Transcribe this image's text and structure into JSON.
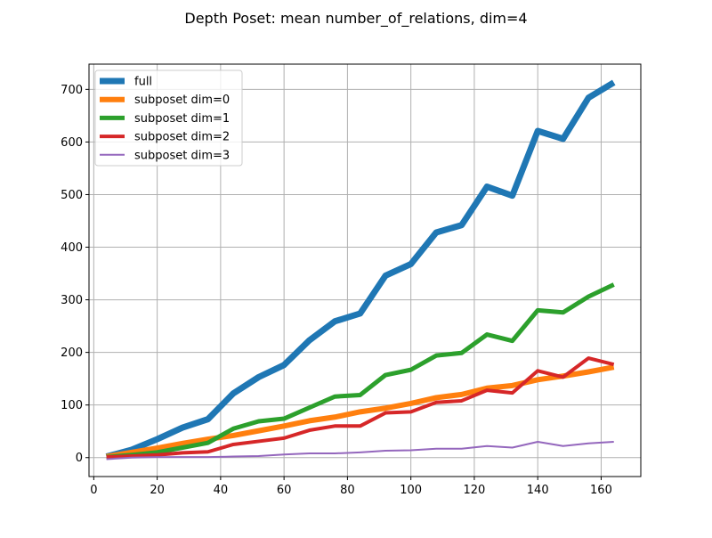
{
  "chart_data": {
    "type": "line",
    "title": "Depth Poset: mean number_of_relations, dim=4",
    "xlabel": "",
    "ylabel": "",
    "xlim": [
      -1.5,
      172.5
    ],
    "ylim": [
      -36,
      748
    ],
    "xticks": [
      0,
      20,
      40,
      60,
      80,
      100,
      120,
      140,
      160
    ],
    "yticks": [
      0,
      100,
      200,
      300,
      400,
      500,
      600,
      700
    ],
    "grid": true,
    "legend_position": "upper-left",
    "x": [
      4,
      12,
      20,
      28,
      36,
      44,
      52,
      60,
      68,
      76,
      84,
      92,
      100,
      108,
      116,
      124,
      132,
      140,
      148,
      156,
      164
    ],
    "series": [
      {
        "name": "full",
        "color": "#1f77b4",
        "line_width": 7,
        "values": [
          2,
          15,
          35,
          57,
          73,
          122,
          153,
          176,
          223,
          259,
          274,
          346,
          368,
          428,
          442,
          515,
          498,
          621,
          606,
          684,
          713
        ]
      },
      {
        "name": "subposet dim=0",
        "color": "#ff7f0e",
        "line_width": 6,
        "values": [
          2,
          10,
          18,
          27,
          35,
          42,
          51,
          60,
          70,
          77,
          87,
          94,
          103,
          114,
          120,
          132,
          137,
          148,
          155,
          163,
          172
        ]
      },
      {
        "name": "subposet dim=1",
        "color": "#2ca02c",
        "line_width": 5,
        "values": [
          1,
          5,
          10,
          19,
          28,
          55,
          69,
          74,
          95,
          116,
          119,
          157,
          167,
          194,
          199,
          234,
          222,
          280,
          276,
          306,
          329
        ]
      },
      {
        "name": "subposet dim=2",
        "color": "#d62728",
        "line_width": 4,
        "values": [
          1,
          3,
          5,
          9,
          11,
          25,
          31,
          37,
          52,
          60,
          60,
          85,
          87,
          105,
          108,
          128,
          123,
          165,
          153,
          189,
          177
        ]
      },
      {
        "name": "subposet dim=3",
        "color": "#9467bd",
        "line_width": 2,
        "values": [
          -3,
          0,
          1,
          1,
          1,
          2,
          3,
          6,
          8,
          8,
          10,
          13,
          14,
          17,
          17,
          22,
          19,
          30,
          22,
          27,
          30
        ]
      }
    ]
  }
}
